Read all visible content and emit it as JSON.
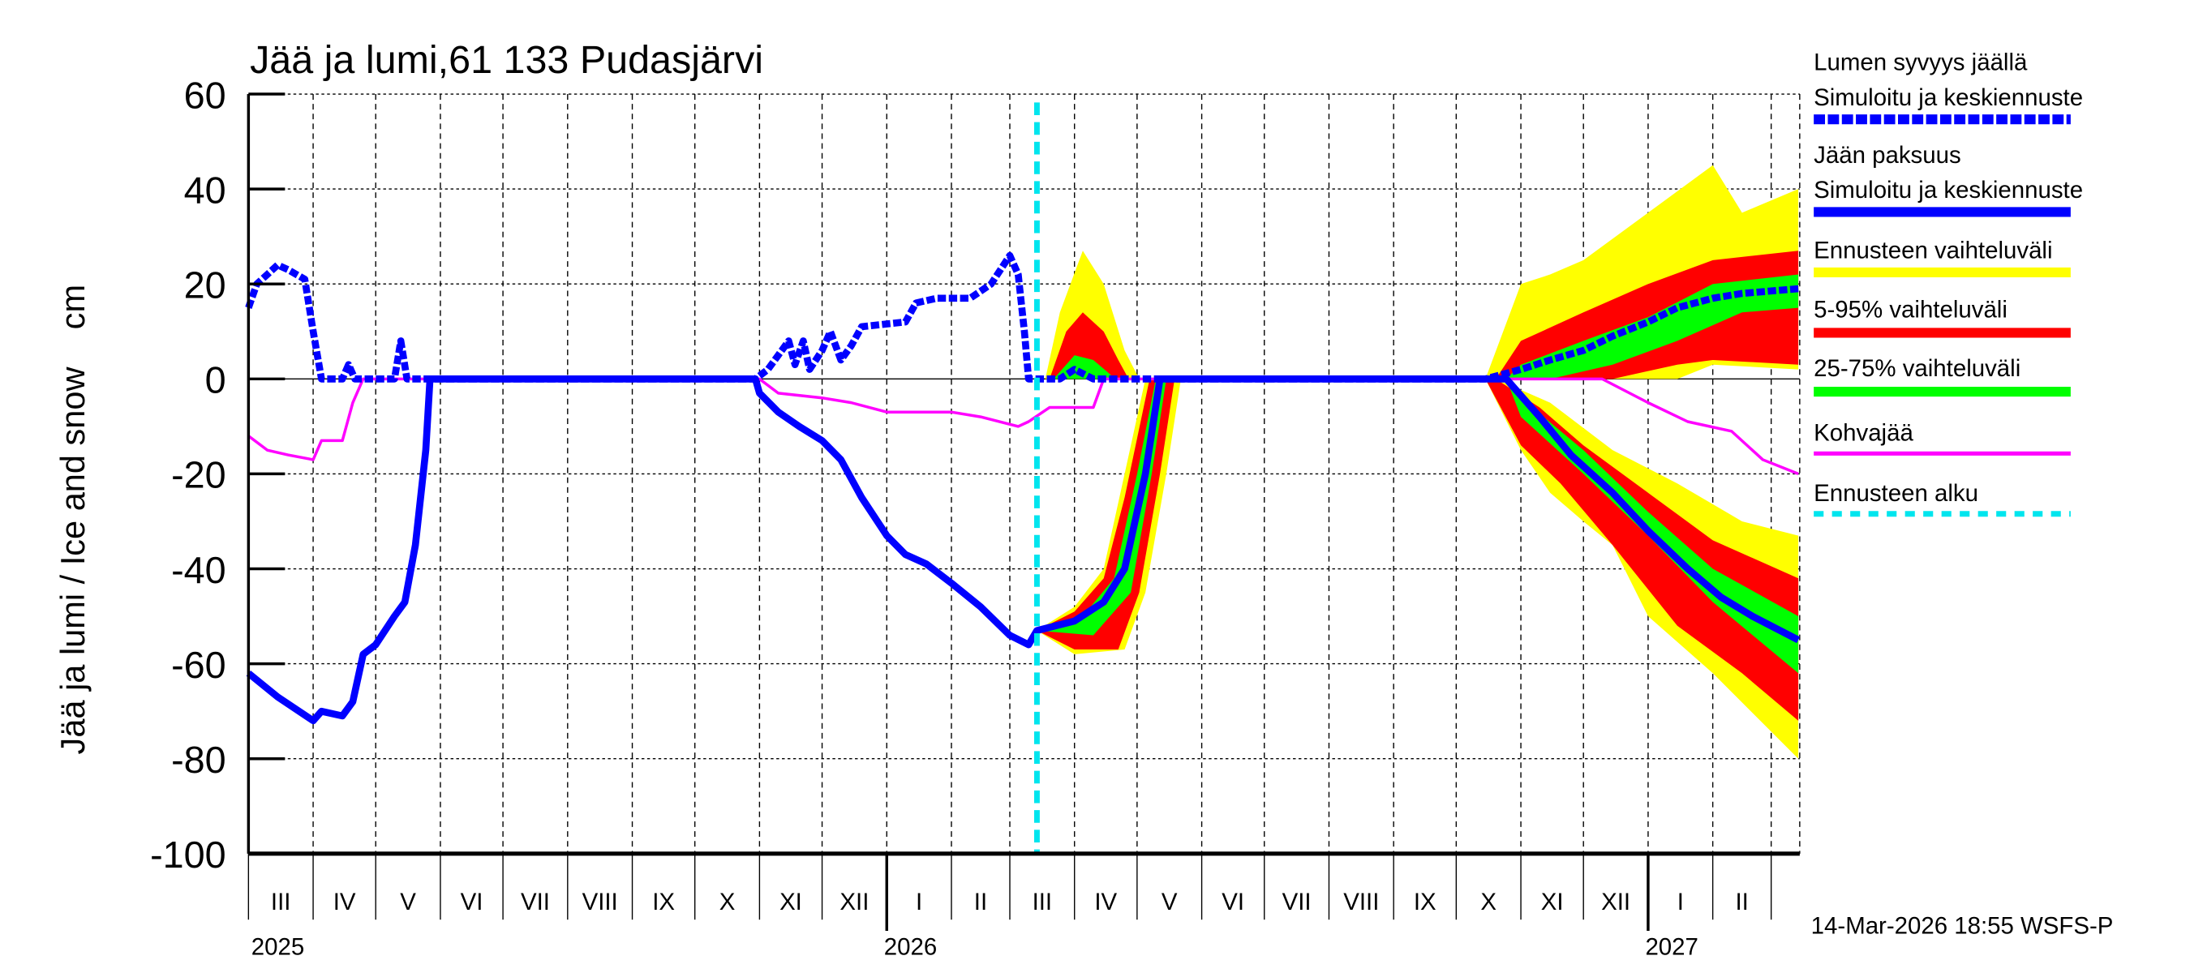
{
  "chart_data": {
    "type": "area",
    "title": "Jää ja lumi,61 133 Pudasjärvi",
    "ylabel": "Jää ja lumi / Ice and snow    cm",
    "xlabel": "",
    "xlim": [
      "2025-03-01",
      "2027-03-14"
    ],
    "ylim": [
      -100,
      60
    ],
    "yticks": [
      60,
      40,
      20,
      0,
      -20,
      -40,
      -60,
      -80,
      -100
    ],
    "grid": true,
    "legend_position": "right",
    "forecast_start": "2026-03-14",
    "month_labels": [
      "III",
      "IV",
      "V",
      "VI",
      "VII",
      "VIII",
      "IX",
      "X",
      "XI",
      "XII",
      "I",
      "II",
      "III",
      "IV",
      "V",
      "VI",
      "VII",
      "VIII",
      "IX",
      "X",
      "XI",
      "XII",
      "I",
      "II"
    ],
    "year_labels": [
      {
        "label": "2025",
        "date": "2025-03-01"
      },
      {
        "label": "2026",
        "date": "2026-01-01"
      },
      {
        "label": "2027",
        "date": "2027-01-01"
      }
    ],
    "colors": {
      "snow": "#0000ff",
      "ice": "#0000ff",
      "range": "#ffff00",
      "p5_95": "#ff0000",
      "p25_75": "#00ff00",
      "slush": "#ff00ff",
      "forecast_start": "#00e5ee"
    },
    "legend": [
      {
        "label": "Lumen syvyys jäällä",
        "label2": "Simuloitu ja keskiennuste",
        "key": "snow",
        "style": "dashed"
      },
      {
        "label": "Jään paksuus",
        "label2": "Simuloitu ja keskiennuste",
        "key": "ice",
        "style": "solid"
      },
      {
        "label": "Ennusteen vaihteluväli",
        "key": "range",
        "style": "solid"
      },
      {
        "label": "5-95% vaihteluväli",
        "key": "p5_95",
        "style": "solid"
      },
      {
        "label": "25-75% vaihteluväli",
        "key": "p25_75",
        "style": "solid"
      },
      {
        "label": "Kohvajää",
        "key": "slush",
        "style": "thin"
      },
      {
        "label": "Ennusteen alku",
        "key": "forecast_start",
        "style": "dotted"
      }
    ],
    "bands": [
      {
        "key": "range",
        "upper": [
          [
            "2026-03-18",
            0
          ],
          [
            "2026-03-25",
            14
          ],
          [
            "2026-04-05",
            27
          ],
          [
            "2026-04-15",
            20
          ],
          [
            "2026-04-25",
            6
          ],
          [
            "2026-05-02",
            0
          ]
        ],
        "lower": [
          [
            "2026-05-02",
            0
          ],
          [
            "2026-03-18",
            0
          ]
        ]
      },
      {
        "key": "p5_95",
        "upper": [
          [
            "2026-03-20",
            0
          ],
          [
            "2026-03-28",
            10
          ],
          [
            "2026-04-05",
            14
          ],
          [
            "2026-04-15",
            10
          ],
          [
            "2026-04-22",
            4
          ],
          [
            "2026-04-27",
            0
          ]
        ],
        "lower": [
          [
            "2026-04-27",
            0
          ],
          [
            "2026-03-20",
            0
          ]
        ]
      },
      {
        "key": "p25_75",
        "upper": [
          [
            "2026-03-22",
            0
          ],
          [
            "2026-04-01",
            5
          ],
          [
            "2026-04-10",
            4
          ],
          [
            "2026-04-18",
            1
          ],
          [
            "2026-04-20",
            0
          ]
        ],
        "lower": [
          [
            "2026-04-20",
            0
          ],
          [
            "2026-03-22",
            0
          ]
        ]
      },
      {
        "key": "range",
        "upper": [
          [
            "2026-03-14",
            -53
          ],
          [
            "2026-04-01",
            -48
          ],
          [
            "2026-04-15",
            -40
          ],
          [
            "2026-04-25",
            -20
          ],
          [
            "2026-05-05",
            0
          ]
        ],
        "lower": [
          [
            "2026-05-22",
            0
          ],
          [
            "2026-05-15",
            -20
          ],
          [
            "2026-05-05",
            -45
          ],
          [
            "2026-04-25",
            -57
          ],
          [
            "2026-04-01",
            -58
          ],
          [
            "2026-03-14",
            -53
          ]
        ]
      },
      {
        "key": "p5_95",
        "upper": [
          [
            "2026-03-14",
            -53
          ],
          [
            "2026-04-01",
            -49
          ],
          [
            "2026-04-15",
            -42
          ],
          [
            "2026-04-25",
            -25
          ],
          [
            "2026-05-07",
            0
          ]
        ],
        "lower": [
          [
            "2026-05-19",
            0
          ],
          [
            "2026-05-12",
            -20
          ],
          [
            "2026-05-02",
            -45
          ],
          [
            "2026-04-22",
            -57
          ],
          [
            "2026-04-01",
            -57
          ],
          [
            "2026-03-14",
            -53
          ]
        ]
      },
      {
        "key": "p25_75",
        "upper": [
          [
            "2026-03-14",
            -53
          ],
          [
            "2026-04-05",
            -50
          ],
          [
            "2026-04-20",
            -42
          ],
          [
            "2026-05-01",
            -20
          ],
          [
            "2026-05-10",
            0
          ]
        ],
        "lower": [
          [
            "2026-05-15",
            0
          ],
          [
            "2026-05-08",
            -20
          ],
          [
            "2026-04-28",
            -45
          ],
          [
            "2026-04-10",
            -54
          ],
          [
            "2026-03-14",
            -53
          ]
        ]
      },
      {
        "key": "range",
        "upper": [
          [
            "2026-10-15",
            0
          ],
          [
            "2026-11-01",
            20
          ],
          [
            "2026-11-15",
            22
          ],
          [
            "2026-12-01",
            25
          ],
          [
            "2027-01-01",
            35
          ],
          [
            "2027-02-01",
            45
          ],
          [
            "2027-02-15",
            35
          ],
          [
            "2027-03-14",
            40
          ]
        ],
        "lower": [
          [
            "2027-03-14",
            2
          ],
          [
            "2027-02-01",
            3
          ],
          [
            "2027-01-15",
            0
          ],
          [
            "2026-10-15",
            0
          ]
        ]
      },
      {
        "key": "p5_95",
        "upper": [
          [
            "2026-10-20",
            0
          ],
          [
            "2026-11-01",
            8
          ],
          [
            "2026-12-01",
            14
          ],
          [
            "2027-01-01",
            20
          ],
          [
            "2027-02-01",
            25
          ],
          [
            "2027-03-14",
            27
          ]
        ],
        "lower": [
          [
            "2027-03-14",
            3
          ],
          [
            "2027-02-01",
            4
          ],
          [
            "2027-01-15",
            3
          ],
          [
            "2026-12-15",
            0
          ],
          [
            "2026-10-20",
            0
          ]
        ]
      },
      {
        "key": "p25_75",
        "upper": [
          [
            "2026-10-25",
            0
          ],
          [
            "2026-11-01",
            3
          ],
          [
            "2026-12-01",
            8
          ],
          [
            "2027-01-01",
            13
          ],
          [
            "2027-02-01",
            20
          ],
          [
            "2027-03-14",
            22
          ]
        ],
        "lower": [
          [
            "2027-03-14",
            15
          ],
          [
            "2027-02-15",
            14
          ],
          [
            "2027-01-15",
            8
          ],
          [
            "2026-12-15",
            3
          ],
          [
            "2026-11-15",
            0
          ],
          [
            "2026-10-25",
            0
          ]
        ]
      },
      {
        "key": "range",
        "upper": [
          [
            "2026-10-20",
            0
          ],
          [
            "2026-11-15",
            -5
          ],
          [
            "2026-12-15",
            -15
          ],
          [
            "2027-01-15",
            -22
          ],
          [
            "2027-02-15",
            -30
          ],
          [
            "2027-03-14",
            -33
          ]
        ],
        "lower": [
          [
            "2027-03-14",
            -80
          ],
          [
            "2027-02-01",
            -62
          ],
          [
            "2027-01-01",
            -50
          ],
          [
            "2026-12-15",
            -35
          ],
          [
            "2026-12-01",
            -30
          ],
          [
            "2026-11-15",
            -24
          ],
          [
            "2026-11-01",
            -15
          ],
          [
            "2026-10-15",
            0
          ]
        ]
      },
      {
        "key": "p5_95",
        "upper": [
          [
            "2026-10-20",
            0
          ],
          [
            "2026-11-10",
            -6
          ],
          [
            "2026-12-01",
            -14
          ],
          [
            "2027-01-01",
            -24
          ],
          [
            "2027-02-01",
            -34
          ],
          [
            "2027-03-14",
            -42
          ]
        ],
        "lower": [
          [
            "2027-03-14",
            -72
          ],
          [
            "2027-02-15",
            -62
          ],
          [
            "2027-01-15",
            -52
          ],
          [
            "2026-12-15",
            -35
          ],
          [
            "2026-11-20",
            -22
          ],
          [
            "2026-11-01",
            -14
          ],
          [
            "2026-10-15",
            0
          ]
        ]
      },
      {
        "key": "p25_75",
        "upper": [
          [
            "2026-10-25",
            0
          ],
          [
            "2026-11-01",
            -4
          ],
          [
            "2026-12-01",
            -15
          ],
          [
            "2027-01-01",
            -28
          ],
          [
            "2027-02-01",
            -40
          ],
          [
            "2027-03-14",
            -50
          ]
        ],
        "lower": [
          [
            "2027-03-14",
            -62
          ],
          [
            "2027-02-01",
            -47
          ],
          [
            "2027-01-01",
            -33
          ],
          [
            "2026-12-01",
            -20
          ],
          [
            "2026-11-01",
            -8
          ],
          [
            "2026-10-25",
            0
          ]
        ]
      }
    ],
    "series": [
      {
        "key": "slush",
        "points": [
          [
            "2025-03-01",
            -12
          ],
          [
            "2025-03-10",
            -15
          ],
          [
            "2025-03-20",
            -16
          ],
          [
            "2025-04-01",
            -17
          ],
          [
            "2025-04-05",
            -13
          ],
          [
            "2025-04-15",
            -13
          ],
          [
            "2025-04-20",
            -5
          ],
          [
            "2025-04-25",
            0
          ],
          [
            "2025-11-01",
            0
          ],
          [
            "2025-11-10",
            -3
          ],
          [
            "2025-12-01",
            -4
          ],
          [
            "2025-12-15",
            -5
          ],
          [
            "2026-01-01",
            -7
          ],
          [
            "2026-02-01",
            -7
          ],
          [
            "2026-02-15",
            -8
          ],
          [
            "2026-03-05",
            -10
          ],
          [
            "2026-03-10",
            -9
          ],
          [
            "2026-03-20",
            -6
          ],
          [
            "2026-04-10",
            -6
          ],
          [
            "2026-04-15",
            0
          ],
          [
            "2026-12-10",
            0
          ],
          [
            "2027-01-01",
            -5
          ],
          [
            "2027-01-20",
            -9
          ],
          [
            "2027-02-10",
            -11
          ],
          [
            "2027-02-25",
            -17
          ],
          [
            "2027-03-14",
            -20
          ]
        ]
      },
      {
        "key": "ice",
        "points": [
          [
            "2025-03-01",
            -62
          ],
          [
            "2025-03-15",
            -67
          ],
          [
            "2025-04-01",
            -72
          ],
          [
            "2025-04-05",
            -70
          ],
          [
            "2025-04-15",
            -71
          ],
          [
            "2025-04-20",
            -68
          ],
          [
            "2025-04-25",
            -58
          ],
          [
            "2025-05-01",
            -56
          ],
          [
            "2025-05-10",
            -50
          ],
          [
            "2025-05-15",
            -47
          ],
          [
            "2025-05-20",
            -35
          ],
          [
            "2025-05-25",
            -15
          ],
          [
            "2025-05-27",
            0
          ],
          [
            "2025-10-30",
            0
          ],
          [
            "2025-11-01",
            -3
          ],
          [
            "2025-11-10",
            -7
          ],
          [
            "2025-11-20",
            -10
          ],
          [
            "2025-12-01",
            -13
          ],
          [
            "2025-12-10",
            -17
          ],
          [
            "2025-12-20",
            -25
          ],
          [
            "2026-01-01",
            -33
          ],
          [
            "2026-01-10",
            -37
          ],
          [
            "2026-01-20",
            -39
          ],
          [
            "2026-02-01",
            -43
          ],
          [
            "2026-02-15",
            -48
          ],
          [
            "2026-03-01",
            -54
          ],
          [
            "2026-03-10",
            -56
          ],
          [
            "2026-03-14",
            -53
          ],
          [
            "2026-04-01",
            -51
          ],
          [
            "2026-04-15",
            -47
          ],
          [
            "2026-04-25",
            -40
          ],
          [
            "2026-05-05",
            -20
          ],
          [
            "2026-05-12",
            0
          ],
          [
            "2026-10-25",
            0
          ],
          [
            "2026-11-10",
            -8
          ],
          [
            "2026-11-25",
            -16
          ],
          [
            "2026-12-15",
            -24
          ],
          [
            "2027-01-01",
            -32
          ],
          [
            "2027-01-20",
            -40
          ],
          [
            "2027-02-05",
            -46
          ],
          [
            "2027-02-20",
            -50
          ],
          [
            "2027-03-14",
            -55
          ]
        ]
      },
      {
        "key": "snow",
        "points": [
          [
            "2025-03-01",
            15
          ],
          [
            "2025-03-05",
            20
          ],
          [
            "2025-03-10",
            22
          ],
          [
            "2025-03-15",
            24
          ],
          [
            "2025-03-20",
            23
          ],
          [
            "2025-03-28",
            21
          ],
          [
            "2025-04-01",
            10
          ],
          [
            "2025-04-05",
            0
          ],
          [
            "2025-04-15",
            0
          ],
          [
            "2025-04-18",
            3
          ],
          [
            "2025-04-21",
            0
          ],
          [
            "2025-05-10",
            0
          ],
          [
            "2025-05-13",
            8
          ],
          [
            "2025-05-16",
            0
          ],
          [
            "2025-10-30",
            0
          ],
          [
            "2025-11-05",
            2
          ],
          [
            "2025-11-10",
            5
          ],
          [
            "2025-11-15",
            8
          ],
          [
            "2025-11-18",
            3
          ],
          [
            "2025-11-22",
            8
          ],
          [
            "2025-11-25",
            2
          ],
          [
            "2025-12-01",
            6
          ],
          [
            "2025-12-05",
            10
          ],
          [
            "2025-12-10",
            4
          ],
          [
            "2025-12-15",
            7
          ],
          [
            "2025-12-20",
            11
          ],
          [
            "2026-01-10",
            12
          ],
          [
            "2026-01-15",
            16
          ],
          [
            "2026-01-25",
            17
          ],
          [
            "2026-02-10",
            17
          ],
          [
            "2026-02-20",
            20
          ],
          [
            "2026-03-01",
            26
          ],
          [
            "2026-03-05",
            22
          ],
          [
            "2026-03-08",
            10
          ],
          [
            "2026-03-10",
            0
          ],
          [
            "2026-03-25",
            0
          ],
          [
            "2026-04-01",
            2
          ],
          [
            "2026-04-10",
            0
          ],
          [
            "2026-10-15",
            0
          ],
          [
            "2026-11-01",
            2
          ],
          [
            "2026-11-15",
            4
          ],
          [
            "2026-12-01",
            6
          ],
          [
            "2026-12-15",
            9
          ],
          [
            "2027-01-01",
            12
          ],
          [
            "2027-01-15",
            15
          ],
          [
            "2027-02-01",
            17
          ],
          [
            "2027-02-15",
            18
          ],
          [
            "2027-03-14",
            19
          ]
        ]
      }
    ]
  },
  "footer": {
    "timestamp": "14-Mar-2026 18:55 WSFS-P"
  }
}
